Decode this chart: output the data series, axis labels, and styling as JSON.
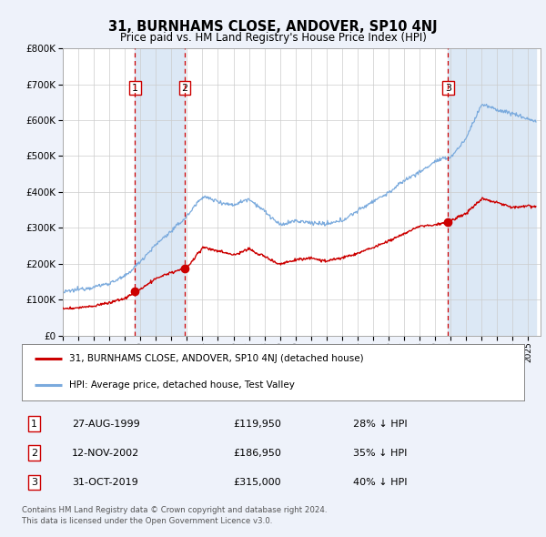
{
  "title": "31, BURNHAMS CLOSE, ANDOVER, SP10 4NJ",
  "subtitle": "Price paid vs. HM Land Registry's House Price Index (HPI)",
  "red_line_label": "31, BURNHAMS CLOSE, ANDOVER, SP10 4NJ (detached house)",
  "blue_line_label": "HPI: Average price, detached house, Test Valley",
  "transactions": [
    {
      "num": 1,
      "date": "27-AUG-1999",
      "price": 119950,
      "pct": "28% ↓ HPI",
      "year": 1999.65
    },
    {
      "num": 2,
      "date": "12-NOV-2002",
      "price": 186950,
      "pct": "35% ↓ HPI",
      "year": 2002.87
    },
    {
      "num": 3,
      "date": "31-OCT-2019",
      "price": 315000,
      "pct": "40% ↓ HPI",
      "year": 2019.83
    }
  ],
  "footnote1": "Contains HM Land Registry data © Crown copyright and database right 2024.",
  "footnote2": "This data is licensed under the Open Government Licence v3.0.",
  "ylim_max": 800000,
  "xlim_start": 1995.0,
  "xlim_end": 2025.5,
  "bg_color": "#eef2fa",
  "plot_bg": "#ffffff",
  "red_color": "#cc0000",
  "blue_color": "#7aaadd",
  "shade_color": "#dce8f5"
}
